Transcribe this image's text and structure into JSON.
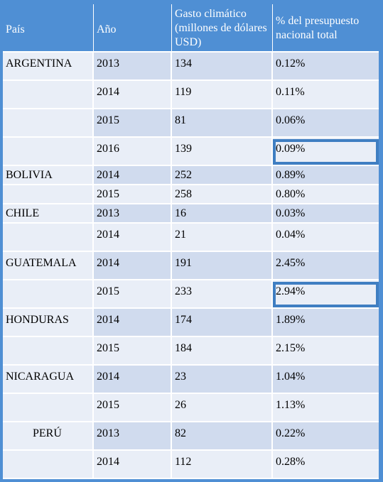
{
  "table": {
    "headers": {
      "country": "País",
      "year": "Año",
      "spending": "Gasto climático (millones de dólares USD)",
      "budget_pct": "% del presupuesto nacional total"
    },
    "rows": [
      {
        "country": "ARGENTINA",
        "year": "2013",
        "spending": "134",
        "pct": "0.12%"
      },
      {
        "country": "",
        "year": "2014",
        "spending": "119",
        "pct": "0.11%"
      },
      {
        "country": "",
        "year": "2015",
        "spending": "81",
        "pct": "0.06%"
      },
      {
        "country": "",
        "year": "2016",
        "spending": "139",
        "pct": "0.09%"
      },
      {
        "country": "BOLIVIA",
        "year": "2014",
        "spending": "252",
        "pct": "0.89%"
      },
      {
        "country": "",
        "year": "2015",
        "spending": "258",
        "pct": "0.80%"
      },
      {
        "country": "CHILE",
        "year": "2013",
        "spending": "16",
        "pct": "0.03%"
      },
      {
        "country": "",
        "year": "2014",
        "spending": "21",
        "pct": "0.04%"
      },
      {
        "country": "GUATEMALA",
        "year": "2014",
        "spending": "191",
        "pct": "2.45%"
      },
      {
        "country": "",
        "year": "2015",
        "spending": "233",
        "pct": "2.94%"
      },
      {
        "country": "HONDURAS",
        "year": "2014",
        "spending": "174",
        "pct": "1.89%"
      },
      {
        "country": "",
        "year": "2015",
        "spending": "184",
        "pct": "2.15%"
      },
      {
        "country": "NICARAGUA",
        "year": "2014",
        "spending": "23",
        "pct": "1.04%"
      },
      {
        "country": "",
        "year": "2015",
        "spending": "26",
        "pct": "1.13%"
      },
      {
        "country": "PERÚ",
        "year": "2013",
        "spending": "82",
        "pct": "0.22%"
      },
      {
        "country": "",
        "year": "2014",
        "spending": "112",
        "pct": "0.28%"
      }
    ]
  },
  "colors": {
    "header_bg": "#4f8fd4",
    "row_dark": "#d0dbee",
    "row_light": "#e9eef7",
    "highlight_border": "#3f7ec2"
  }
}
